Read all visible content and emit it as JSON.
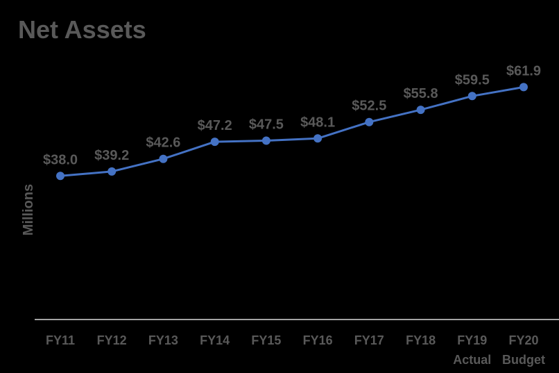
{
  "chart_data": {
    "type": "line",
    "title": "Net Assets",
    "ylabel": "Millions",
    "xlabel": "",
    "categories": [
      [
        "FY11"
      ],
      [
        "FY12"
      ],
      [
        "FY13"
      ],
      [
        "FY14"
      ],
      [
        "FY15"
      ],
      [
        "FY16"
      ],
      [
        "FY17"
      ],
      [
        "FY18"
      ],
      [
        "FY19",
        "Actual"
      ],
      [
        "FY20",
        "Budget"
      ]
    ],
    "series": [
      {
        "values": [
          38.0,
          39.2,
          42.6,
          47.2,
          47.5,
          48.1,
          52.5,
          55.8,
          59.5,
          61.9
        ],
        "labels": [
          "$38.0",
          "$39.2",
          "$42.6",
          "$47.2",
          "$47.5",
          "$48.1",
          "$52.5",
          "$55.8",
          "$59.5",
          "$61.9"
        ]
      }
    ],
    "grid": false,
    "legend": "none",
    "colors": {
      "background": "#000000",
      "line": "#4472C4",
      "text": "#595959",
      "axis": "#D9D9D9"
    }
  }
}
